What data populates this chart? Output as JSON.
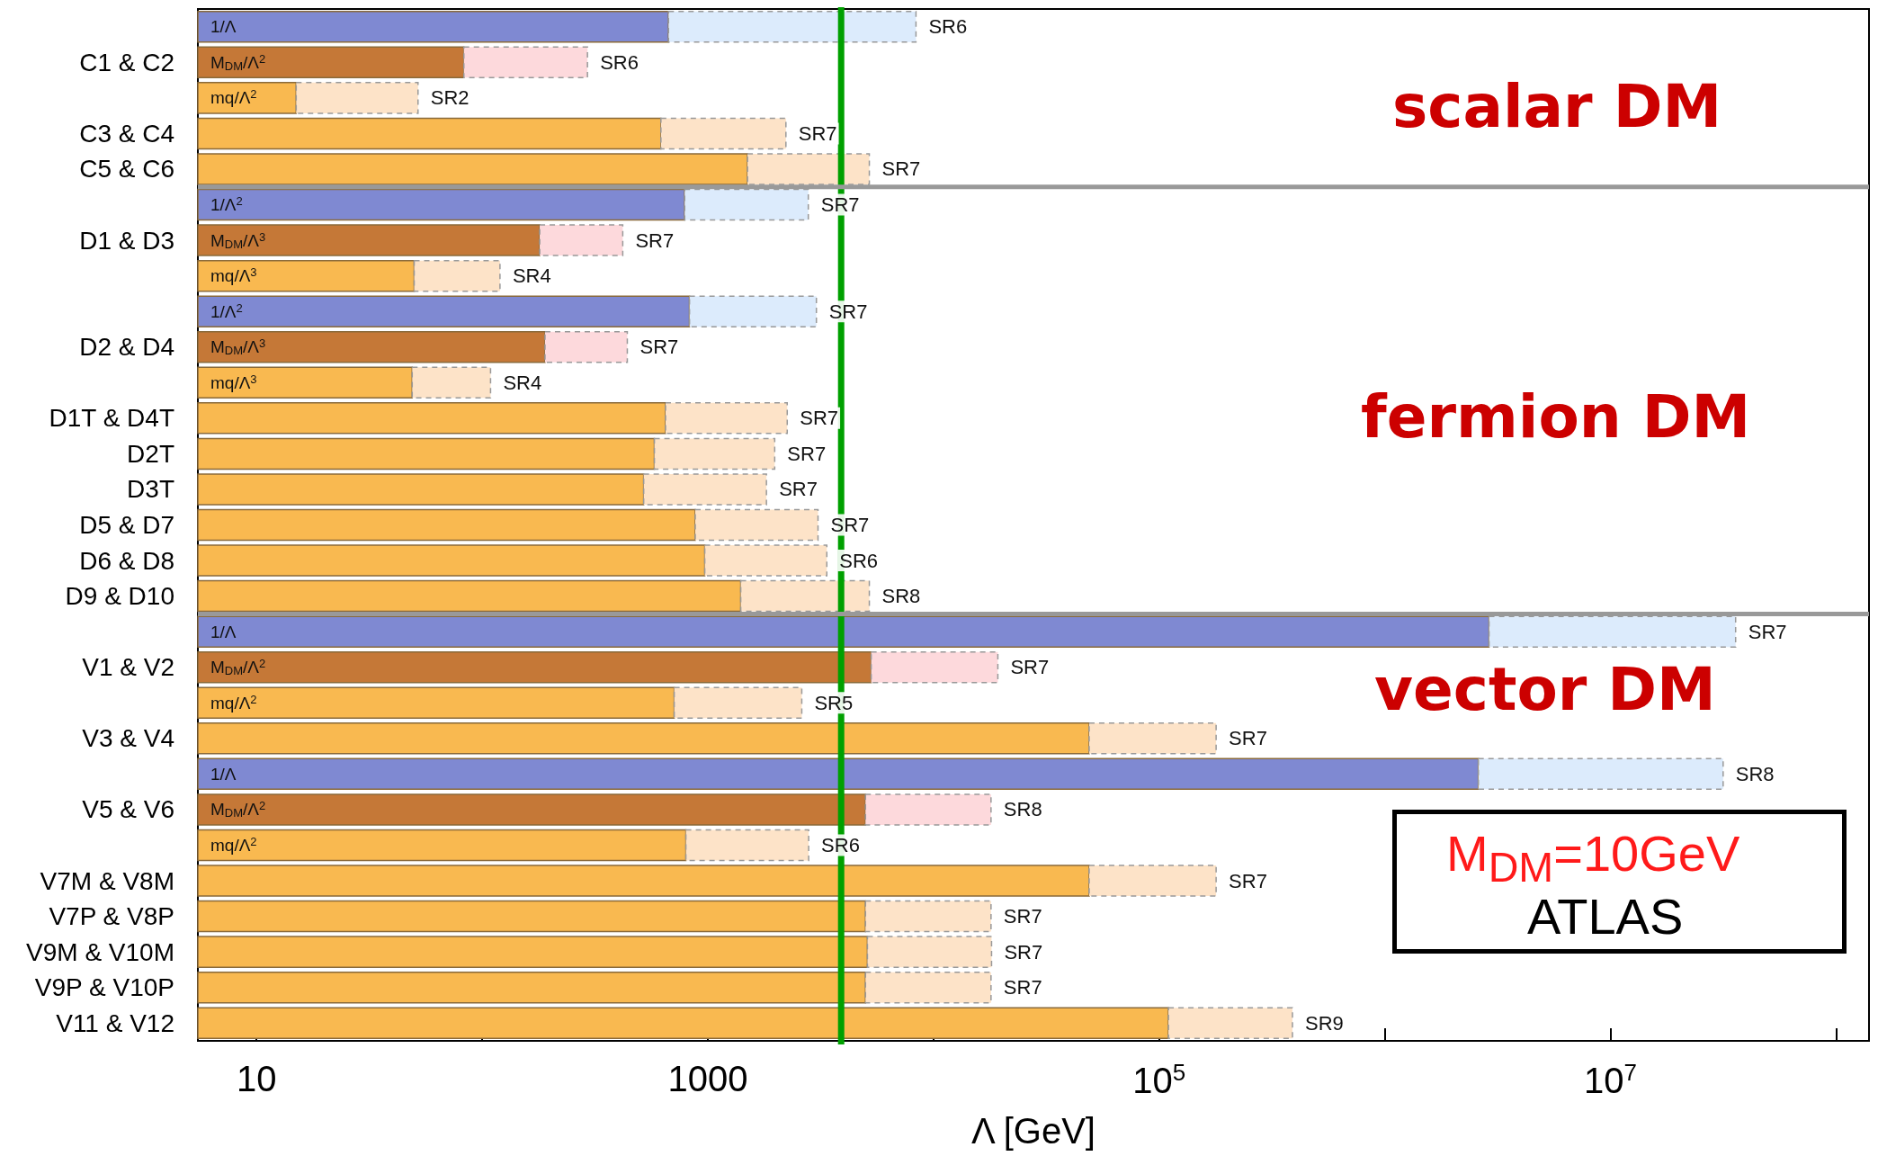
{
  "chart_data": {
    "type": "bar",
    "orientation": "horizontal",
    "stacked": true,
    "xlabel": "Λ [GeV]",
    "log": "x",
    "categories": [
      null,
      "C1 & C2",
      null,
      "C3 & C4",
      "C5 & C6",
      null,
      "D1 & D3",
      null,
      null,
      "D2 & D4",
      null,
      "D1T & D4T",
      "D2T",
      "D3T",
      "D5 & D7",
      "D6 & D8",
      "D9 & D10",
      null,
      "V1 & V2",
      null,
      "V3 & V4",
      null,
      "V5 & V6",
      null,
      "V7M & V8M",
      "V7P & V8P",
      "V9M & V10M",
      "V9P & V10P",
      "V11 & V12"
    ],
    "y2_categories": [
      "1/Λ",
      "M$_{DM}$/Λ$^{2}$",
      "mq/Λ$^{2}$",
      null,
      null,
      "1/Λ$^{2}$",
      "M$_{DM}$/Λ$^{3}$",
      "mq/Λ$^{3}$",
      "1/Λ$^{2}$",
      "M$_{DM}$/Λ$^{3}$",
      "mq/Λ$^{3}$",
      null,
      null,
      null,
      null,
      null,
      null,
      "1/Λ",
      "M$_{DM}$/Λ$^{2}$",
      "mq/Λ$^{2}$",
      null,
      "1/Λ",
      "M$_{DM}$/Λ$^{2}$",
      "mq/Λ$^{2}$",
      null,
      null,
      null,
      null,
      null
    ],
    "xlim": [
      5.5,
      140000000
    ],
    "xticks": [
      10,
      {
        "value": 100,
        "label": null
      },
      1000,
      {
        "value": 10000,
        "label": null
      },
      {
        "value": 100000,
        "label": "10$^{5}$"
      },
      {
        "value": 1000000,
        "label": null
      },
      {
        "value": 10000000,
        "label": "10$^{7}$"
      },
      {
        "value": 100000000,
        "label": null
      }
    ],
    "series": [
      {
        "line_style": "solid",
        "values": [
          670,
          83,
          15,
          620,
          1500,
          790,
          180,
          50,
          830,
          190,
          49,
          650,
          580,
          520,
          880,
          970,
          1400,
          2900000,
          5300,
          710,
          49000,
          2600000,
          5000,
          800,
          49000,
          5000,
          5100,
          5000,
          110000
        ],
        "colors": [
          "#7f89d2",
          "#c57837",
          "#f9b950",
          "#f9b950",
          "#f9b950",
          "#7f89d2",
          "#c57837",
          "#f9b950",
          "#7f89d2",
          "#c57837",
          "#f9b950",
          "#f9b950",
          "#f9b950",
          "#f9b950",
          "#f9b950",
          "#f9b950",
          "#f9b950",
          "#7f89d2",
          "#c57837",
          "#f9b950",
          "#f9b950",
          "#7f89d2",
          "#c57837",
          "#f9b950",
          "#f9b950",
          "#f9b950",
          "#f9b950",
          "#f9b950",
          "#f9b950"
        ]
      },
      {
        "line_style": "dashed",
        "values": [
          7700,
          210,
          37,
          1600,
          3700,
          2000,
          240,
          70,
          2200,
          250,
          60,
          1600,
          1400,
          1300,
          2200,
          2400,
          3800,
          33000000,
          14000,
          1900,
          130000,
          29000000,
          13000,
          2000,
          130000,
          13000,
          13000,
          13000,
          280000
        ],
        "colors": [
          "#dcebfc",
          "#fdd9dc",
          "#fde3c8",
          "#fde3c8",
          "#fde3c8",
          "#dcebfc",
          "#fdd9dc",
          "#fde3c8",
          "#dcebfc",
          "#fdd9dc",
          "#fde3c8",
          "#fde3c8",
          "#fde3c8",
          "#fde3c8",
          "#fde3c8",
          "#fde3c8",
          "#fde3c8",
          "#dcebfc",
          "#fdd9dc",
          "#fde3c8",
          "#fde3c8",
          "#dcebfc",
          "#fdd9dc",
          "#fde3c8",
          "#fde3c8",
          "#fde3c8",
          "#fde3c8",
          "#fde3c8",
          "#fde3c8"
        ],
        "value_labels": [
          "SR6",
          "SR6",
          "SR2",
          "SR7",
          "SR7",
          "SR7",
          "SR7",
          "SR4",
          "SR7",
          "SR7",
          "SR4",
          "SR7",
          "SR7",
          "SR7",
          "SR7",
          "SR6",
          "SR8",
          "SR7",
          "SR7",
          "SR5",
          "SR7",
          "SR8",
          "SR8",
          "SR6",
          "SR7",
          "SR7",
          "SR7",
          "SR7",
          "SR9"
        ]
      }
    ],
    "ref_lines": [
      {
        "axis": "x",
        "value": 3900,
        "color": "#00a000"
      },
      {
        "axis": "y",
        "value": "C5 & C6",
        "color": "#999999"
      },
      {
        "axis": "y",
        "value": "D9 & D10",
        "color": "#999999"
      }
    ],
    "annotations": [
      "scalar DM",
      "fermion DM",
      "vector DM",
      "M$_{DM}$=10GeV",
      "ATLAS"
    ]
  }
}
